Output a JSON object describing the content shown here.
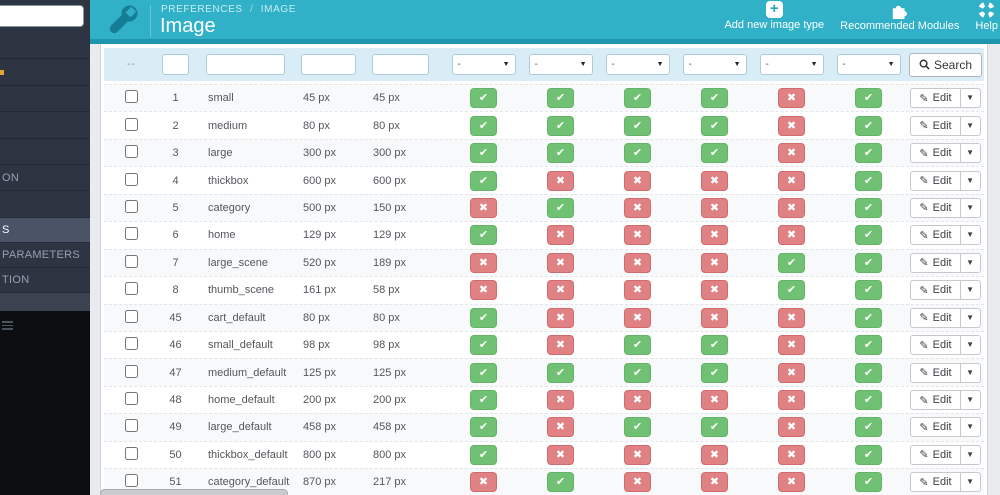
{
  "header": {
    "breadcrumb": {
      "section": "PREFERENCES",
      "separator": "/",
      "page": "IMAGE"
    },
    "title": "Image",
    "actions": [
      {
        "label": "Add new image type",
        "icon": "plus-icon"
      },
      {
        "label": "Recommended Modules",
        "icon": "puzzle-icon"
      },
      {
        "label": "Help",
        "icon": "lifering-icon"
      }
    ]
  },
  "sidebar": {
    "search_value": "",
    "items": [
      {
        "label": "",
        "state": ""
      },
      {
        "label": "",
        "state": ""
      },
      {
        "label": "",
        "state": ""
      },
      {
        "label": "",
        "state": ""
      },
      {
        "label": "",
        "state": ""
      },
      {
        "label": "ON",
        "state": ""
      },
      {
        "label": "",
        "state": ""
      },
      {
        "label": "S",
        "state": "active"
      },
      {
        "label": "PARAMETERS",
        "state": "after-active"
      },
      {
        "label": "TION",
        "state": "after-active"
      },
      {
        "label": "",
        "state": "ghost"
      }
    ]
  },
  "filters": {
    "select_all_label": "--",
    "id_value": "",
    "name_value": "",
    "width_value": "",
    "height_value": "",
    "dropdown_value": "-",
    "search_label": "Search"
  },
  "icons": {
    "check": "✔",
    "cross": "✖",
    "caret_down": "▼",
    "edit_pencil": "✎"
  },
  "table": {
    "edit_label": "Edit",
    "rows": [
      {
        "id": "1",
        "name": "small",
        "width": "45 px",
        "height": "45 px",
        "statuses": [
          true,
          true,
          true,
          true,
          false,
          true
        ]
      },
      {
        "id": "2",
        "name": "medium",
        "width": "80 px",
        "height": "80 px",
        "statuses": [
          true,
          true,
          true,
          true,
          false,
          true
        ]
      },
      {
        "id": "3",
        "name": "large",
        "width": "300 px",
        "height": "300 px",
        "statuses": [
          true,
          true,
          true,
          true,
          false,
          true
        ]
      },
      {
        "id": "4",
        "name": "thickbox",
        "width": "600 px",
        "height": "600 px",
        "statuses": [
          true,
          false,
          false,
          false,
          false,
          true
        ]
      },
      {
        "id": "5",
        "name": "category",
        "width": "500 px",
        "height": "150 px",
        "statuses": [
          false,
          true,
          false,
          false,
          false,
          true
        ]
      },
      {
        "id": "6",
        "name": "home",
        "width": "129 px",
        "height": "129 px",
        "statuses": [
          true,
          false,
          false,
          false,
          false,
          true
        ]
      },
      {
        "id": "7",
        "name": "large_scene",
        "width": "520 px",
        "height": "189 px",
        "statuses": [
          false,
          false,
          false,
          false,
          true,
          true
        ]
      },
      {
        "id": "8",
        "name": "thumb_scene",
        "width": "161 px",
        "height": "58 px",
        "statuses": [
          false,
          false,
          false,
          false,
          true,
          true
        ]
      },
      {
        "id": "45",
        "name": "cart_default",
        "width": "80 px",
        "height": "80 px",
        "statuses": [
          true,
          false,
          false,
          false,
          false,
          true
        ]
      },
      {
        "id": "46",
        "name": "small_default",
        "width": "98 px",
        "height": "98 px",
        "statuses": [
          true,
          false,
          true,
          true,
          false,
          true
        ]
      },
      {
        "id": "47",
        "name": "medium_default",
        "width": "125 px",
        "height": "125 px",
        "statuses": [
          true,
          true,
          true,
          true,
          false,
          true
        ]
      },
      {
        "id": "48",
        "name": "home_default",
        "width": "200 px",
        "height": "200 px",
        "statuses": [
          true,
          false,
          false,
          false,
          false,
          true
        ]
      },
      {
        "id": "49",
        "name": "large_default",
        "width": "458 px",
        "height": "458 px",
        "statuses": [
          true,
          false,
          true,
          true,
          false,
          true
        ]
      },
      {
        "id": "50",
        "name": "thickbox_default",
        "width": "800 px",
        "height": "800 px",
        "statuses": [
          true,
          false,
          false,
          false,
          false,
          true
        ]
      },
      {
        "id": "51",
        "name": "category_default",
        "width": "870 px",
        "height": "217 px",
        "statuses": [
          false,
          true,
          false,
          false,
          false,
          true
        ]
      }
    ]
  },
  "colors": {
    "header_teal": "#30b1c8",
    "header_strip": "#2095ae",
    "sidebar_dark": "#2d3442",
    "filter_bg": "#d9edf7",
    "status_green": "#71c175",
    "status_red": "#e08184"
  }
}
